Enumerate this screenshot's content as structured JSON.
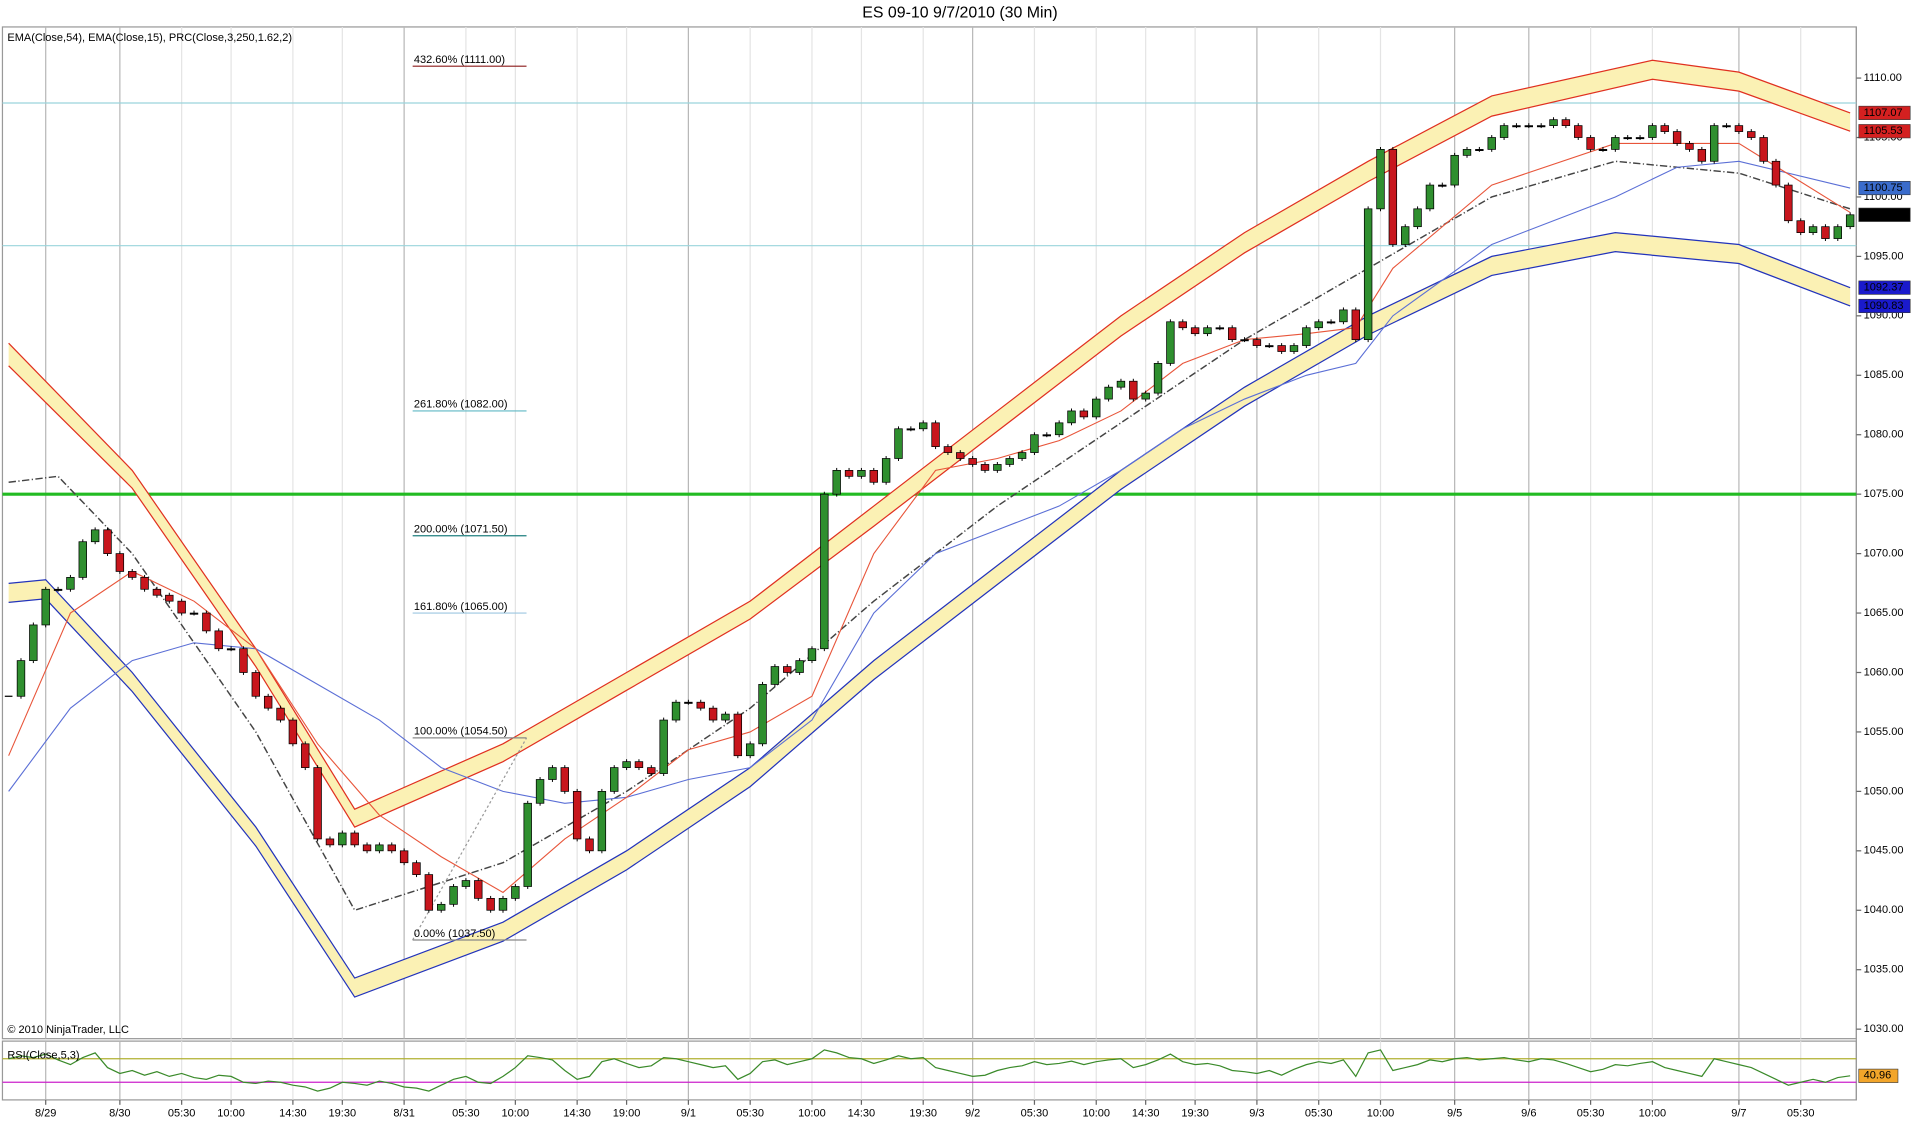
{
  "chart_data": {
    "type": "candlestick",
    "title": "ES 09-10  9/7/2010 (30 Min)",
    "indicator_label": "EMA(Close,54), EMA(Close,15), PRC(Close,3,250,1.62,2)",
    "copyright": "© 2010 NinjaTrader, LLC",
    "categories": [
      null,
      null,
      null,
      "8/29",
      null,
      null,
      null,
      null,
      null,
      "8/30",
      null,
      null,
      null,
      null,
      "05:30",
      null,
      null,
      null,
      "10:00",
      null,
      null,
      null,
      null,
      "14:30",
      null,
      null,
      null,
      "19:30",
      null,
      null,
      null,
      null,
      "8/31",
      null,
      null,
      null,
      null,
      "05:30",
      null,
      null,
      null,
      "10:00",
      null,
      null,
      null,
      null,
      "14:30",
      null,
      null,
      null,
      "19:00",
      null,
      null,
      null,
      null,
      "9/1",
      null,
      null,
      null,
      null,
      "05:30",
      null,
      null,
      null,
      null,
      "10:00",
      null,
      null,
      null,
      "14:30",
      null,
      null,
      null,
      null,
      "19:30",
      null,
      null,
      null,
      "9/2",
      null,
      null,
      null,
      null,
      "05:30",
      null,
      null,
      null,
      null,
      "10:00",
      null,
      null,
      null,
      "14:30",
      null,
      null,
      null,
      "19:30",
      null,
      null,
      null,
      null,
      "9/3",
      null,
      null,
      null,
      null,
      "05:30",
      null,
      null,
      null,
      null,
      "10:00",
      null,
      null,
      null,
      null,
      null,
      "9/5",
      null,
      null,
      null,
      null,
      null,
      "9/6",
      null,
      null,
      null,
      null,
      "05:30",
      null,
      null,
      null,
      null,
      "10:00",
      null,
      null,
      null,
      null,
      null,
      null,
      "9/7",
      null,
      null,
      null,
      null,
      "05:30",
      null,
      null,
      null,
      null
    ],
    "close": [
      1058,
      1061,
      1064,
      1067,
      1067,
      1068,
      1071,
      1072,
      1070,
      1068.5,
      1068,
      1067,
      1066.5,
      1066,
      1065,
      1065,
      1063.5,
      1062,
      1062,
      1060,
      1058,
      1057,
      1056,
      1054,
      1052,
      1046,
      1045.5,
      1046.5,
      1045.5,
      1045,
      1045.5,
      1045,
      1044,
      1043,
      1040,
      1040.5,
      1042,
      1042.5,
      1041,
      1040,
      1041,
      1042,
      1049,
      1051,
      1052,
      1050,
      1046,
      1045,
      1050,
      1052,
      1052.5,
      1052,
      1051.5,
      1056,
      1057.5,
      1057.5,
      1057,
      1056,
      1056.5,
      1053,
      1054,
      1059,
      1060.5,
      1060,
      1061,
      1062,
      1075,
      1077,
      1076.5,
      1077,
      1076,
      1078,
      1080.5,
      1080.5,
      1081,
      1079,
      1078.5,
      1078,
      1077.5,
      1077,
      1077.5,
      1078,
      1078.5,
      1080,
      1080,
      1081,
      1082,
      1081.5,
      1083,
      1084,
      1084.5,
      1083,
      1083.5,
      1086,
      1089.5,
      1089,
      1088.5,
      1089,
      1089,
      1088,
      1088,
      1087.5,
      1087.5,
      1087,
      1087.5,
      1089,
      1089.5,
      1089.5,
      1090.5,
      1088,
      1099,
      1104,
      1096,
      1097.5,
      1099,
      1101,
      1101,
      1103.5,
      1104,
      1104,
      1105,
      1106,
      1106,
      1106,
      1106,
      1106.5,
      1106,
      1105,
      1104,
      1104,
      1105,
      1105,
      1105,
      1106,
      1105.5,
      1104.5,
      1104,
      1103,
      1106,
      1106,
      1105.5,
      1105,
      1103,
      1101,
      1098,
      1097,
      1097.5,
      1096.5,
      1097.5,
      1098.5
    ],
    "up_color": "#2f8f2f",
    "down_color": "#c8161d",
    "ylim": [
      1029.2,
      1114.3
    ],
    "yticks": [
      {
        "value": 1030,
        "label": "1030.00"
      },
      {
        "value": 1035,
        "label": "1035.00"
      },
      {
        "value": 1040,
        "label": "1040.00"
      },
      {
        "value": 1045,
        "label": "1045.00"
      },
      {
        "value": 1050,
        "label": "1050.00"
      },
      {
        "value": 1055,
        "label": "1055.00"
      },
      {
        "value": 1060,
        "label": "1060.00"
      },
      {
        "value": 1065,
        "label": "1065.00"
      },
      {
        "value": 1070,
        "label": "1070.00"
      },
      {
        "value": 1075,
        "label": "1075.00"
      },
      {
        "value": 1080,
        "label": "1080.00"
      },
      {
        "value": 1085,
        "label": "1085.00"
      },
      {
        "value": 1090,
        "label": "1090.00"
      },
      {
        "value": 1095,
        "label": "1095.00"
      },
      {
        "value": 1100,
        "label": "1100.00"
      },
      {
        "value": 1105,
        "label": "1105.00"
      },
      {
        "value": 1110,
        "label": "1110.00"
      }
    ],
    "grid": true,
    "bands": [
      {
        "fill": "#fbf1b4",
        "upper": {
          "color": "#e03020",
          "x": [
            0,
            10,
            20,
            28,
            40,
            50,
            60,
            70,
            80,
            90,
            100,
            110,
            120,
            133,
            140,
            149
          ],
          "values": [
            1087.7,
            1077,
            1062,
            1048.5,
            1054,
            1060,
            1066,
            1074,
            1082,
            1090,
            1097,
            1103,
            1108.5,
            1111.5,
            1110.5,
            1107.07
          ]
        },
        "lower": {
          "color": "#e03020",
          "x": [
            0,
            10,
            20,
            28,
            40,
            50,
            60,
            70,
            80,
            90,
            100,
            110,
            120,
            133,
            140,
            149
          ],
          "values": [
            1085.8,
            1075.5,
            1060.5,
            1047,
            1052.5,
            1058.5,
            1064.5,
            1072.3,
            1080.3,
            1088.3,
            1095.3,
            1101.3,
            1106.8,
            1109.9,
            1108.9,
            1105.53
          ]
        }
      },
      {
        "fill": "#fbf1b4",
        "upper": {
          "color": "#2233bb",
          "x": [
            0,
            3,
            10,
            20,
            28,
            40,
            50,
            60,
            70,
            80,
            90,
            100,
            110,
            120,
            130,
            140,
            149
          ],
          "values": [
            1067.5,
            1067.8,
            1060,
            1047,
            1034.3,
            1039,
            1045,
            1052,
            1061,
            1069,
            1077,
            1084,
            1090,
            1095,
            1097,
            1096,
            1092.37
          ]
        },
        "lower": {
          "color": "#2233bb",
          "x": [
            0,
            3,
            10,
            20,
            28,
            40,
            50,
            60,
            70,
            80,
            90,
            100,
            110,
            120,
            130,
            140,
            149
          ],
          "values": [
            1065.9,
            1066.2,
            1058.4,
            1045.4,
            1032.7,
            1037.4,
            1043.4,
            1050.4,
            1059.4,
            1067.4,
            1075.4,
            1082.4,
            1088.4,
            1093.4,
            1095.4,
            1094.4,
            1090.83
          ]
        }
      }
    ],
    "overlays": [
      {
        "color": "#444444",
        "style": "dash-dot",
        "x": [
          0,
          4,
          10,
          20,
          28,
          40,
          50,
          60,
          70,
          80,
          90,
          100,
          110,
          120,
          130,
          140,
          149
        ],
        "values": [
          1076,
          1076.5,
          1070,
          1055,
          1040,
          1044,
          1050,
          1057,
          1066,
          1074,
          1081,
          1088,
          1094,
          1100,
          1103,
          1102,
          1099
        ]
      },
      {
        "color": "#5b6fd6",
        "style": "solid",
        "x": [
          0,
          5,
          10,
          15,
          20,
          25,
          30,
          35,
          40,
          45,
          50,
          55,
          60,
          65,
          70,
          75,
          80,
          85,
          90,
          95,
          100,
          105,
          109,
          112,
          120,
          130,
          135,
          140,
          149
        ],
        "values": [
          1050,
          1057,
          1061,
          1062.5,
          1062,
          1059,
          1056,
          1052,
          1050,
          1049,
          1049.5,
          1051,
          1052,
          1056,
          1065,
          1070,
          1072,
          1074,
          1077,
          1080.5,
          1083,
          1085,
          1086,
          1090,
          1096,
          1100,
          1102.5,
          1103,
          1100.75
        ]
      },
      {
        "color": "#e8553a",
        "style": "solid",
        "x": [
          0,
          5,
          10,
          15,
          20,
          25,
          30,
          35,
          40,
          45,
          50,
          55,
          60,
          65,
          70,
          75,
          80,
          85,
          90,
          95,
          100,
          105,
          109,
          112,
          120,
          130,
          135,
          140,
          149
        ],
        "values": [
          1053,
          1065,
          1068.5,
          1066,
          1062,
          1054,
          1048,
          1044.5,
          1041.5,
          1046,
          1049.5,
          1053.5,
          1055,
          1058,
          1070,
          1077,
          1078,
          1079.5,
          1082,
          1086,
          1088,
          1088.5,
          1089,
          1094,
          1101,
          1104.5,
          1104.5,
          1104.5,
          1098.7
        ]
      }
    ],
    "hlines": [
      {
        "value": 1075,
        "color": "#22bb22",
        "width": 2.5
      },
      {
        "value": 1107.9,
        "color": "#9ad4dc",
        "width": 1
      },
      {
        "value": 1095.9,
        "color": "#9ad4dc",
        "width": 1
      }
    ],
    "fib_levels": [
      {
        "label": "432.60% (1111.00)",
        "value": 1111,
        "color": "#8b1a1a"
      },
      {
        "label": "261.80% (1082.00)",
        "value": 1082,
        "color": "#5fb8c4"
      },
      {
        "label": "200.00% (1071.50)",
        "value": 1071.5,
        "color": "#1f7f7f"
      },
      {
        "label": "161.80% (1065.00)",
        "value": 1065,
        "color": "#9cc6e0"
      },
      {
        "label": "100.00% (1054.50)",
        "value": 1054.5,
        "color": "#888888"
      },
      {
        "label": "0.00% (1037.50)",
        "value": 1037.5,
        "color": "#888888"
      }
    ],
    "price_flags": [
      {
        "label": "1107.07",
        "value": 1107.07,
        "color": "#d42020"
      },
      {
        "label": "1105.53",
        "value": 1105.53,
        "color": "#d42020"
      },
      {
        "label": "1100.75",
        "value": 1100.75,
        "color": "#3a6ccc"
      },
      {
        "label": "1098.50",
        "value": 1098.5,
        "color": "#000000"
      },
      {
        "label": "1092.37",
        "value": 1092.37,
        "color": "#1a1acc"
      },
      {
        "label": "1090.83",
        "value": 1090.83,
        "color": "#1a1acc"
      }
    ],
    "rsi": {
      "label": "RSI(Close,5,3)",
      "ylim": [
        0,
        100
      ],
      "color": "#3a8a2a",
      "levels": [
        {
          "value": 70,
          "color": "#b0b030"
        },
        {
          "value": 30,
          "color": "#cc22cc"
        }
      ],
      "values": [
        70,
        75,
        72,
        78,
        68,
        60,
        72,
        80,
        55,
        45,
        50,
        42,
        48,
        40,
        45,
        38,
        35,
        42,
        40,
        30,
        28,
        32,
        30,
        25,
        22,
        15,
        20,
        30,
        28,
        25,
        32,
        28,
        22,
        20,
        15,
        25,
        35,
        40,
        30,
        28,
        40,
        55,
        75,
        72,
        68,
        50,
        35,
        40,
        65,
        70,
        62,
        55,
        58,
        72,
        70,
        65,
        60,
        55,
        58,
        35,
        45,
        65,
        68,
        60,
        65,
        70,
        85,
        80,
        72,
        70,
        62,
        68,
        75,
        70,
        72,
        55,
        50,
        45,
        40,
        42,
        50,
        55,
        58,
        65,
        60,
        62,
        66,
        60,
        65,
        68,
        70,
        55,
        60,
        68,
        78,
        65,
        60,
        62,
        58,
        50,
        48,
        45,
        50,
        42,
        52,
        60,
        65,
        62,
        68,
        40,
        80,
        85,
        50,
        55,
        60,
        68,
        65,
        70,
        72,
        68,
        70,
        72,
        68,
        65,
        70,
        68,
        62,
        55,
        48,
        52,
        60,
        58,
        62,
        65,
        55,
        50,
        45,
        40,
        70,
        65,
        60,
        55,
        45,
        35,
        25,
        30,
        35,
        30,
        38,
        40.96
      ],
      "flag": {
        "label": "40.96",
        "value": 40.96,
        "color": "#f2a52a"
      }
    }
  }
}
